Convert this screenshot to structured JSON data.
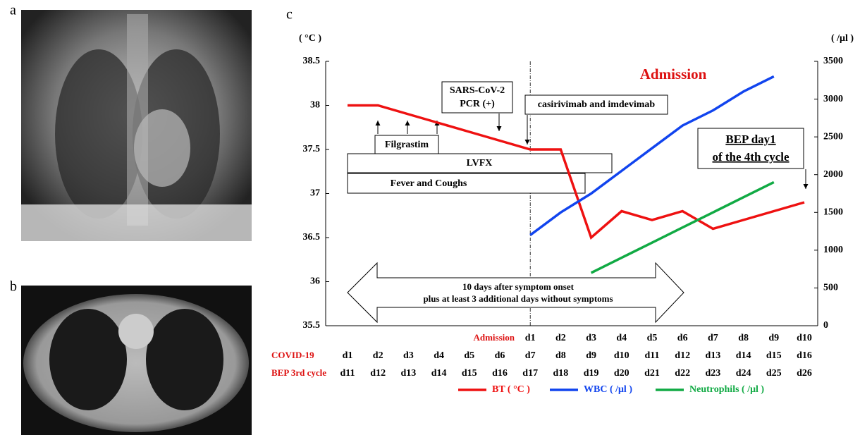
{
  "panels": {
    "a": "a",
    "b": "b"
  },
  "chart_data": {
    "type": "line",
    "panel": "c",
    "y_label": "( °C )",
    "y2_label": "( /μl )",
    "categories": [
      "d1",
      "d2",
      "d3",
      "d4",
      "d5",
      "d6",
      "d7",
      "d8",
      "d9",
      "d10",
      "d11",
      "d12",
      "d13",
      "d14",
      "d15",
      "d16"
    ],
    "category_row_name": "COVID-19",
    "extra_rows": [
      {
        "name": "Admission",
        "labels": [
          null,
          null,
          null,
          null,
          null,
          null,
          "d1",
          "d2",
          "d3",
          "d4",
          "d5",
          "d6",
          "d7",
          "d8",
          "d9",
          "d10"
        ]
      },
      {
        "name": "BEP 3rd cycle",
        "labels": [
          "d11",
          "d12",
          "d13",
          "d14",
          "d15",
          "d16",
          "d17",
          "d18",
          "d19",
          "d20",
          "d21",
          "d22",
          "d23",
          "d24",
          "d25",
          "d26"
        ]
      }
    ],
    "ylim": [
      35.5,
      38.5
    ],
    "yticks": [
      35.5,
      36,
      36.5,
      37,
      37.5,
      38,
      38.5
    ],
    "y2lim": [
      0,
      3500
    ],
    "y2ticks": [
      0,
      500,
      1000,
      1500,
      2000,
      2500,
      3000,
      3500
    ],
    "series": [
      {
        "name": "BT ( °C )",
        "color": "#ee1111",
        "values": [
          38,
          38,
          37.9,
          37.8,
          37.7,
          37.6,
          37.5,
          37.5,
          36.5,
          36.8,
          36.7,
          36.8,
          36.6,
          36.7,
          36.8,
          36.9
        ]
      },
      {
        "name": "WBC ( /μl )",
        "color": "#1144ee",
        "axis": "y2",
        "values": [
          null,
          null,
          null,
          null,
          null,
          null,
          1200,
          1500,
          1750,
          2050,
          2350,
          2650,
          2850,
          3100,
          3300,
          null
        ]
      },
      {
        "name": "Neutrophils ( /μl )",
        "color": "#11aa44",
        "axis": "y2",
        "values": [
          null,
          null,
          null,
          null,
          null,
          null,
          null,
          null,
          700,
          900,
          1100,
          1300,
          1500,
          1700,
          1900,
          null
        ]
      }
    ],
    "annotations": {
      "admission": "Admission",
      "pcr": [
        "SARS-CoV-2",
        "PCR (+)"
      ],
      "antibody": "casirivimab and imdevimab",
      "filgrastim": "Filgrastim",
      "lvfx": "LVFX",
      "fever": "Fever and Coughs",
      "bep": [
        "BEP day1",
        "of the 4th cycle"
      ],
      "isolation": [
        "10 days after symptom onset",
        "plus at least 3 additional days without symptoms"
      ]
    }
  }
}
